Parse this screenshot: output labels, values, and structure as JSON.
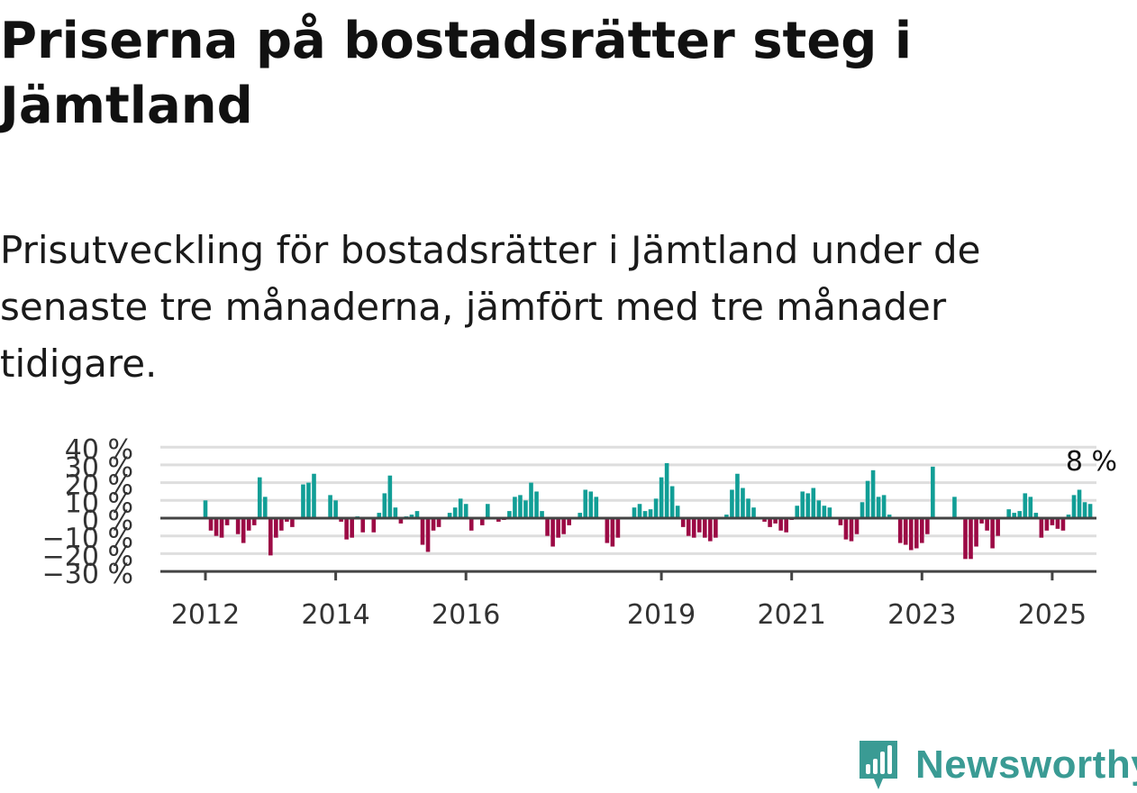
{
  "title": "Priserna på bostadsrätter steg i Jämtland",
  "subtitle": "Prisutveckling för bostadsrätter i Jämtland under de senaste tre månaderna, jämfört med tre månader tidigare.",
  "brand": {
    "name": "Newsworthy",
    "icon": "newsworthy-logo-icon",
    "color": "#3a9b94"
  },
  "colors": {
    "positive": "#119e96",
    "negative": "#9c0a45",
    "grid": "#dedede",
    "zero_line": "#444444"
  },
  "chart_data": {
    "type": "bar",
    "ylabel": "",
    "xlabel": "",
    "ylim": [
      -30,
      40
    ],
    "y_ticks": [
      -30,
      -20,
      -10,
      0,
      10,
      20,
      30,
      40
    ],
    "y_tick_labels": [
      "−30 %",
      "−20 %",
      "−10 %",
      "0 %",
      "10 %",
      "20 %",
      "30 %",
      "40 %"
    ],
    "x_ticks": [
      2012,
      2014,
      2016,
      2019,
      2021,
      2023,
      2025
    ],
    "x_tick_labels": [
      "2012",
      "2014",
      "2016",
      "2019",
      "2021",
      "2023",
      "2025"
    ],
    "x_start": 2012,
    "interval": "month",
    "annotation": {
      "text": "8 %",
      "value": 8
    },
    "values": [
      10,
      -7,
      -10,
      -11,
      -4,
      0,
      -9,
      -14,
      -7,
      -4,
      23,
      12,
      -21,
      -11,
      -7,
      -2,
      -5,
      0,
      19,
      20,
      25,
      0,
      0,
      13,
      10,
      -2,
      -12,
      -11,
      1,
      -8,
      0,
      -8,
      3,
      14,
      24,
      6,
      -3,
      1,
      2,
      4,
      -15,
      -19,
      -7,
      -5,
      0,
      3,
      6,
      11,
      8,
      -7,
      0,
      -4,
      8,
      0,
      -2,
      -1,
      4,
      12,
      13,
      10,
      20,
      15,
      4,
      -10,
      -16,
      -11,
      -9,
      -4,
      0,
      3,
      16,
      15,
      12,
      0,
      -14,
      -16,
      -11,
      0,
      0,
      6,
      8,
      4,
      5,
      11,
      23,
      31,
      18,
      7,
      -5,
      -10,
      -11,
      -8,
      -11,
      -13,
      -11,
      0,
      2,
      16,
      25,
      17,
      11,
      6,
      0,
      -2,
      -5,
      -3,
      -7,
      -8,
      -1,
      7,
      15,
      14,
      17,
      10,
      7,
      6,
      0,
      -4,
      -12,
      -13,
      -9,
      9,
      21,
      27,
      12,
      13,
      2,
      0,
      -14,
      -15,
      -18,
      -17,
      -14,
      -9,
      29,
      0,
      0,
      0,
      12,
      0,
      -23,
      -23,
      -16,
      -3,
      -7,
      -17,
      -10,
      0,
      5,
      3,
      4,
      14,
      12,
      3,
      -11,
      -7,
      -4,
      -6,
      -7,
      2,
      13,
      16,
      9,
      8
    ]
  }
}
